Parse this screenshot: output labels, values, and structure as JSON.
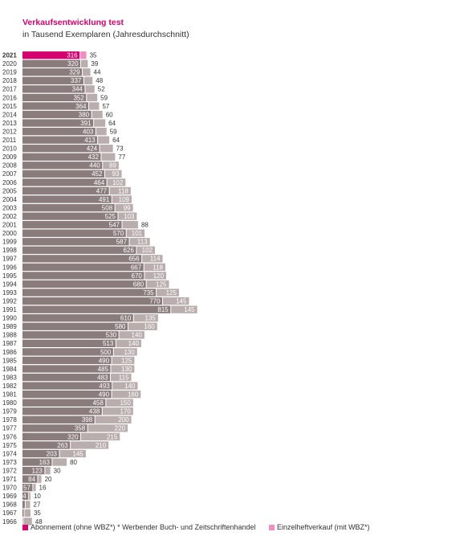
{
  "chart_data": {
    "type": "bar",
    "stacked": true,
    "orientation": "horizontal",
    "title": "Verkaufsentwicklung test",
    "subtitle": "in Tausend Exemplaren (Jahresdurchschnitt)",
    "highlight_category": "2021",
    "categories": [
      "2021",
      "2020",
      "2019",
      "2018",
      "2017",
      "2016",
      "2015",
      "2014",
      "2013",
      "2012",
      "2011",
      "2010",
      "2009",
      "2008",
      "2007",
      "2006",
      "2005",
      "2004",
      "2003",
      "2002",
      "2001",
      "2000",
      "1999",
      "1998",
      "1997",
      "1996",
      "1995",
      "1994",
      "1993",
      "1992",
      "1991",
      "1990",
      "1989",
      "1988",
      "1987",
      "1986",
      "1985",
      "1984",
      "1983",
      "1982",
      "1981",
      "1980",
      "1979",
      "1978",
      "1977",
      "1976",
      "1975",
      "1974",
      "1973",
      "1972",
      "1971",
      "1970",
      "1969",
      "1968",
      "1967",
      "1966"
    ],
    "series": [
      {
        "name": "Abonnement (ohne WBZ*)",
        "values": [
          316,
          320,
          329,
          337,
          344,
          352,
          364,
          380,
          391,
          403,
          413,
          424,
          432,
          440,
          452,
          464,
          477,
          491,
          508,
          525,
          547,
          570,
          587,
          626,
          656,
          667,
          670,
          680,
          735,
          770,
          815,
          610,
          580,
          530,
          513,
          500,
          490,
          485,
          483,
          493,
          490,
          458,
          438,
          398,
          358,
          320,
          263,
          203,
          163,
          123,
          84,
          57,
          34,
          15,
          9,
          4
        ]
      },
      {
        "name": "Einzelheftverkauf (mit WBZ*)",
        "values": [
          35,
          39,
          44,
          48,
          52,
          59,
          57,
          60,
          64,
          59,
          64,
          73,
          77,
          89,
          93,
          102,
          118,
          109,
          99,
          103,
          88,
          101,
          113,
          102,
          114,
          118,
          120,
          125,
          125,
          145,
          145,
          135,
          160,
          140,
          140,
          130,
          125,
          130,
          115,
          140,
          160,
          150,
          170,
          200,
          220,
          215,
          210,
          145,
          80,
          30,
          20,
          16,
          10,
          27,
          35,
          48
        ]
      }
    ],
    "legend": {
      "series1": "Abonnement (ohne WBZ*)",
      "footnote": "* Werbender Buch- und Zeitschriftenhandel",
      "series2": "Einzelheftverkauf (mit WBZ*)"
    },
    "colors": {
      "abo": "#8a7b7c",
      "einzel": "#b9adae",
      "highlight_abo": "#d6006f",
      "highlight_einzel": "#ef8fbf",
      "text": "#333333"
    }
  }
}
